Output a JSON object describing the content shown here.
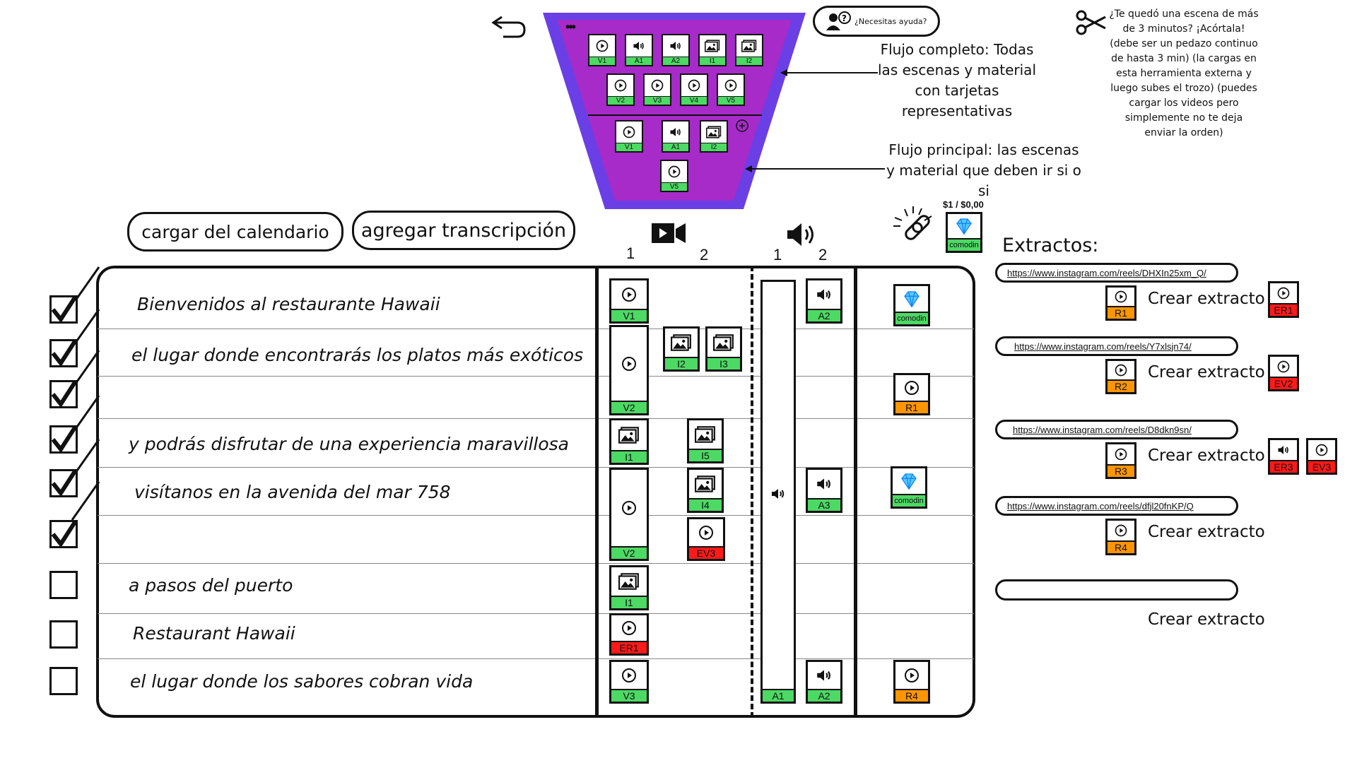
{
  "header": {
    "help_text": "¿Necesitas ayuda?",
    "ellipsis": "•••",
    "note_full_flow": "Flujo completo: Todas las escenas y material con tarjetas representativas",
    "note_main_flow": "Flujo principal: las escenas y material  que deben ir si o si",
    "scissors_note": "¿Te quedó una escena de más de 3 minutos? ¡Acórtala! (debe ser un pedazo continuo de hasta 3 min) (la cargas en esta herramienta externa y luego subes el trozo) (puedes cargar los videos pero simplemente no te deja enviar la orden)",
    "price": "$1 / $0,00",
    "comodin_label": "comodin"
  },
  "funnel": {
    "row1": [
      "V1",
      "A1",
      "A2",
      "I1",
      "I2"
    ],
    "row2": [
      "V2",
      "V3",
      "V4",
      "V5"
    ],
    "row3": [
      "V1",
      "A1",
      "I2"
    ],
    "row4": [
      "V5"
    ],
    "colors": {
      "outer": "#6a3fe6",
      "inner": "#a62bc8"
    }
  },
  "toolbar": {
    "load_calendar": "cargar del calendario",
    "add_transcription": "agregar transcripción"
  },
  "columns": {
    "video_1": "1",
    "video_2": "2",
    "audio_1": "1",
    "audio_2": "2"
  },
  "rows": [
    {
      "text": "Bienvenidos al restaurante Hawaii",
      "checked": true
    },
    {
      "text": "el lugar donde encontrarás los platos más exóticos",
      "checked": true
    },
    {
      "text": "",
      "checked": true
    },
    {
      "text": "y podrás disfrutar de una experiencia maravillosa",
      "checked": true
    },
    {
      "text": "visítanos en la avenida del mar 758",
      "checked": true
    },
    {
      "text": "",
      "checked": true
    },
    {
      "text": "a pasos del puerto",
      "checked": false
    },
    {
      "text": "Restaurant Hawaii",
      "checked": false
    },
    {
      "text": "el lugar donde los sabores cobran vida",
      "checked": false
    }
  ],
  "timeline": {
    "v1_cards": [
      "V1",
      "V2",
      "I1",
      "V2",
      "I1",
      "ER1",
      "V3"
    ],
    "v2_cards": [
      "I2",
      "I3",
      "I5",
      "I4",
      "EV3"
    ],
    "a1_cards": [
      "A1"
    ],
    "a2_cards": [
      "A2",
      "A3",
      "A2"
    ],
    "extra_cards": [
      "comodin",
      "R1",
      "comodin",
      "R4"
    ]
  },
  "extracts": {
    "title": "Extractos:",
    "items": [
      {
        "url": "https://www.instagram.com/reels/DHXIn25xm_Q/",
        "card": "R1",
        "button": "Crear extracto",
        "outputs": [
          "ER1"
        ]
      },
      {
        "url": "https://www.instagram.com/reels/Y7xlsjn74/",
        "card": "R2",
        "button": "Crear extracto",
        "outputs": [
          "EV2"
        ]
      },
      {
        "url": "https://www.instagram.com/reels/D8dkn9sn/",
        "card": "R3",
        "button": "Crear extracto",
        "outputs": [
          "ER3",
          "EV3"
        ]
      },
      {
        "url": "https://www.instagram.com/reels/dfjl20fnKP/Q",
        "card": "R4",
        "button": "Crear extracto",
        "outputs": []
      },
      {
        "url": "",
        "card": "",
        "button": "Crear extracto",
        "outputs": []
      }
    ]
  }
}
